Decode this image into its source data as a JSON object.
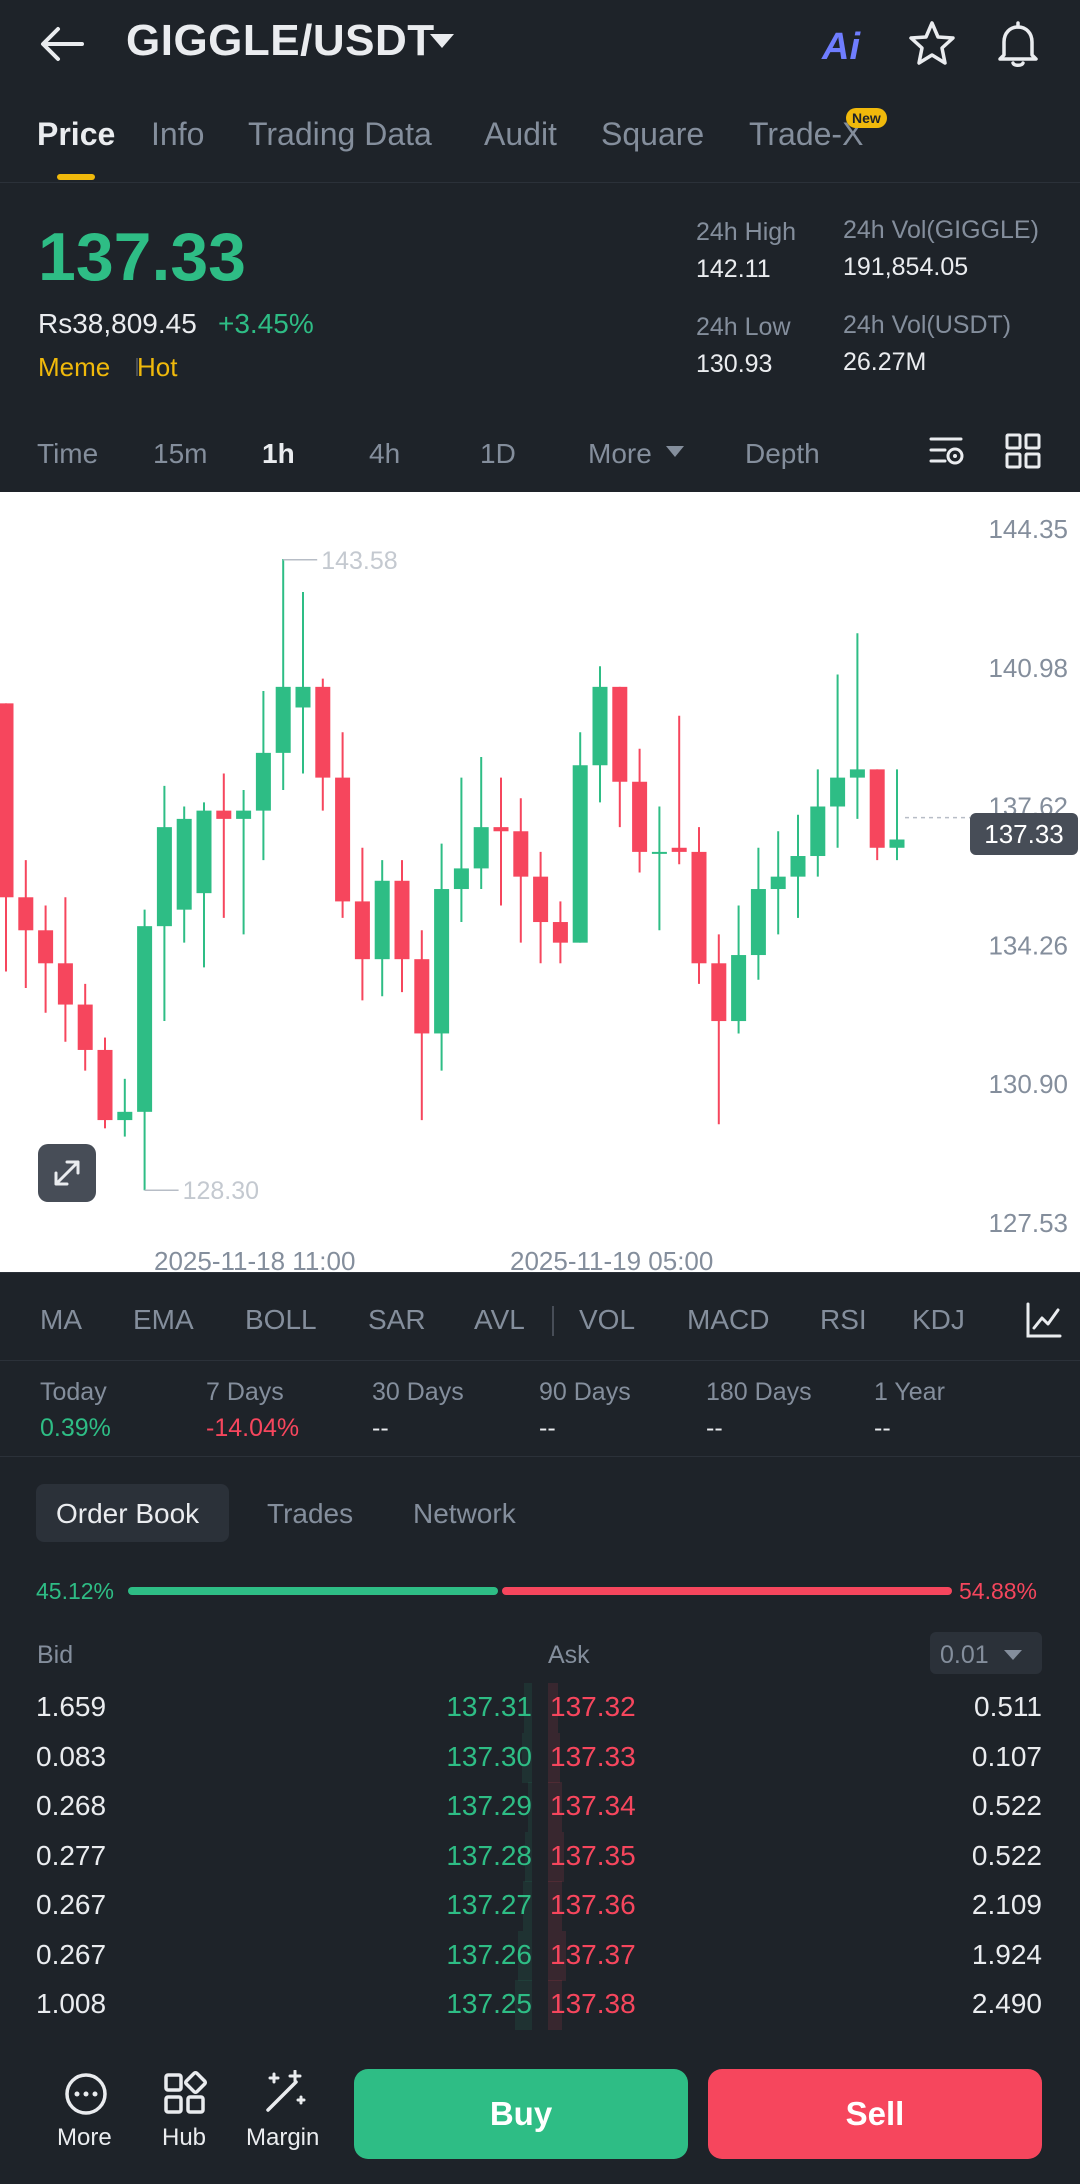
{
  "header": {
    "pair": "GIGGLE/USDT",
    "ai_label": "Ai"
  },
  "tabs": [
    {
      "label": "Price"
    },
    {
      "label": "Info"
    },
    {
      "label": "Trading Data"
    },
    {
      "label": "Audit"
    },
    {
      "label": "Square"
    },
    {
      "label": "Trade-X"
    }
  ],
  "new_badge": "New",
  "price": {
    "last": "137.33",
    "fiat": "Rs38,809.45",
    "change": "+3.45%",
    "tags": [
      "Meme",
      "Hot"
    ]
  },
  "stats": {
    "high_label": "24h High",
    "high": "142.11",
    "low_label": "24h Low",
    "low": "130.93",
    "vol_base_label": "24h Vol(GIGGLE)",
    "vol_base": "191,854.05",
    "vol_quote_label": "24h Vol(USDT)",
    "vol_quote": "26.27M"
  },
  "timeframes": [
    "Time",
    "15m",
    "1h",
    "4h",
    "1D",
    "More",
    "Depth"
  ],
  "active_timeframe": "1h",
  "chart_data": {
    "type": "candlestick",
    "y_ticks": [
      "144.35",
      "140.98",
      "137.62",
      "134.26",
      "130.90",
      "127.53"
    ],
    "ylim": [
      127.53,
      144.35
    ],
    "x_labels": [
      "2025-11-18 11:00",
      "2025-11-19 05:00"
    ],
    "max_label": "143.58",
    "min_label": "128.30",
    "last_price_tag": "137.33",
    "candles": [
      {
        "o": 140.1,
        "c": 135.4,
        "h": 140.1,
        "l": 133.6
      },
      {
        "o": 135.4,
        "c": 134.6,
        "h": 136.3,
        "l": 133.2
      },
      {
        "o": 134.6,
        "c": 133.8,
        "h": 135.2,
        "l": 132.6
      },
      {
        "o": 133.8,
        "c": 132.8,
        "h": 135.4,
        "l": 131.9
      },
      {
        "o": 132.8,
        "c": 131.7,
        "h": 133.3,
        "l": 131.2
      },
      {
        "o": 131.7,
        "c": 130.0,
        "h": 132.0,
        "l": 129.8
      },
      {
        "o": 130.0,
        "c": 130.2,
        "h": 131.0,
        "l": 129.6
      },
      {
        "o": 130.2,
        "c": 134.7,
        "h": 135.1,
        "l": 128.3
      },
      {
        "o": 134.7,
        "c": 137.1,
        "h": 138.1,
        "l": 132.4
      },
      {
        "o": 135.1,
        "c": 137.3,
        "h": 137.6,
        "l": 134.3
      },
      {
        "o": 135.5,
        "c": 137.5,
        "h": 137.7,
        "l": 133.7
      },
      {
        "o": 137.5,
        "c": 137.3,
        "h": 138.4,
        "l": 134.9
      },
      {
        "o": 137.3,
        "c": 137.5,
        "h": 138.0,
        "l": 134.5
      },
      {
        "o": 137.5,
        "c": 138.9,
        "h": 140.4,
        "l": 136.3
      },
      {
        "o": 138.9,
        "c": 140.5,
        "h": 143.6,
        "l": 138.0
      },
      {
        "o": 140.0,
        "c": 140.5,
        "h": 142.8,
        "l": 138.4
      },
      {
        "o": 140.5,
        "c": 138.3,
        "h": 140.7,
        "l": 137.5
      },
      {
        "o": 138.3,
        "c": 135.3,
        "h": 139.4,
        "l": 134.9
      },
      {
        "o": 135.3,
        "c": 133.9,
        "h": 136.6,
        "l": 132.9
      },
      {
        "o": 133.9,
        "c": 135.8,
        "h": 136.3,
        "l": 133.0
      },
      {
        "o": 135.8,
        "c": 133.9,
        "h": 136.3,
        "l": 133.1
      },
      {
        "o": 133.9,
        "c": 132.1,
        "h": 134.6,
        "l": 130.0
      },
      {
        "o": 132.1,
        "c": 135.6,
        "h": 136.7,
        "l": 131.2
      },
      {
        "o": 135.6,
        "c": 136.1,
        "h": 138.3,
        "l": 134.8
      },
      {
        "o": 136.1,
        "c": 137.1,
        "h": 138.8,
        "l": 135.6
      },
      {
        "o": 137.1,
        "c": 137.0,
        "h": 138.3,
        "l": 135.2
      },
      {
        "o": 137.0,
        "c": 135.9,
        "h": 137.8,
        "l": 134.3
      },
      {
        "o": 135.9,
        "c": 134.8,
        "h": 136.5,
        "l": 133.8
      },
      {
        "o": 134.8,
        "c": 134.3,
        "h": 135.3,
        "l": 133.8
      },
      {
        "o": 134.3,
        "c": 138.6,
        "h": 139.4,
        "l": 134.3
      },
      {
        "o": 138.6,
        "c": 140.5,
        "h": 141.0,
        "l": 137.7
      },
      {
        "o": 140.5,
        "c": 138.2,
        "h": 140.5,
        "l": 137.1
      },
      {
        "o": 138.2,
        "c": 136.5,
        "h": 139.0,
        "l": 136.0
      },
      {
        "o": 136.5,
        "c": 136.5,
        "h": 137.6,
        "l": 134.6
      },
      {
        "o": 136.6,
        "c": 136.5,
        "h": 139.8,
        "l": 136.2
      },
      {
        "o": 136.5,
        "c": 133.8,
        "h": 137.1,
        "l": 133.3
      },
      {
        "o": 133.8,
        "c": 132.4,
        "h": 134.5,
        "l": 129.9
      },
      {
        "o": 132.4,
        "c": 134.0,
        "h": 135.2,
        "l": 132.1
      },
      {
        "o": 134.0,
        "c": 135.6,
        "h": 136.6,
        "l": 133.4
      },
      {
        "o": 135.6,
        "c": 135.9,
        "h": 137.0,
        "l": 134.5
      },
      {
        "o": 135.9,
        "c": 136.4,
        "h": 137.4,
        "l": 134.9
      },
      {
        "o": 136.4,
        "c": 137.6,
        "h": 138.5,
        "l": 135.9
      },
      {
        "o": 137.6,
        "c": 138.3,
        "h": 140.8,
        "l": 136.6
      },
      {
        "o": 138.3,
        "c": 138.5,
        "h": 141.8,
        "l": 137.3
      },
      {
        "o": 138.5,
        "c": 136.6,
        "h": 138.5,
        "l": 136.3
      },
      {
        "o": 136.6,
        "c": 136.8,
        "h": 138.5,
        "l": 136.3
      }
    ]
  },
  "indicators": [
    "MA",
    "EMA",
    "BOLL",
    "SAR",
    "AVL",
    "VOL",
    "MACD",
    "RSI",
    "KDJ"
  ],
  "performance": [
    {
      "label": "Today",
      "value": "0.39%",
      "dir": "up"
    },
    {
      "label": "7 Days",
      "value": "-14.04%",
      "dir": "down"
    },
    {
      "label": "30 Days",
      "value": "--",
      "dir": "none"
    },
    {
      "label": "90 Days",
      "value": "--",
      "dir": "none"
    },
    {
      "label": "180 Days",
      "value": "--",
      "dir": "none"
    },
    {
      "label": "1 Year",
      "value": "--",
      "dir": "none"
    }
  ],
  "book_tabs": [
    "Order Book",
    "Trades",
    "Network"
  ],
  "ratio": {
    "bid": "45.12%",
    "ask": "54.88%"
  },
  "book_headers": {
    "bid": "Bid",
    "ask": "Ask",
    "precision": "0.01"
  },
  "order_book": [
    {
      "bid_qty": "1.659",
      "bid_price": "137.31",
      "ask_price": "137.32",
      "ask_qty": "0.511"
    },
    {
      "bid_qty": "0.083",
      "bid_price": "137.30",
      "ask_price": "137.33",
      "ask_qty": "0.107"
    },
    {
      "bid_qty": "0.268",
      "bid_price": "137.29",
      "ask_price": "137.34",
      "ask_qty": "0.522"
    },
    {
      "bid_qty": "0.277",
      "bid_price": "137.28",
      "ask_price": "137.35",
      "ask_qty": "0.522"
    },
    {
      "bid_qty": "0.267",
      "bid_price": "137.27",
      "ask_price": "137.36",
      "ask_qty": "2.109"
    },
    {
      "bid_qty": "0.267",
      "bid_price": "137.26",
      "ask_price": "137.37",
      "ask_qty": "1.924"
    },
    {
      "bid_qty": "1.008",
      "bid_price": "137.25",
      "ask_price": "137.38",
      "ask_qty": "2.490"
    }
  ],
  "bottom_nav": [
    {
      "label": "More",
      "icon": "more-circle-icon"
    },
    {
      "label": "Hub",
      "icon": "hub-grid-icon"
    },
    {
      "label": "Margin",
      "icon": "margin-wand-icon"
    }
  ],
  "buy_label": "Buy",
  "sell_label": "Sell",
  "colors": {
    "up": "#2ebd85",
    "down": "#f6465d",
    "accent": "#f0b90b",
    "bg": "#1e2329"
  }
}
